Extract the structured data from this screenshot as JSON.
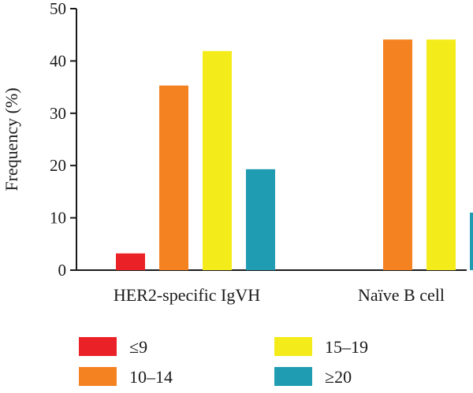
{
  "chart_data": {
    "type": "bar",
    "title": "",
    "xlabel": "",
    "ylabel": "Frequency (%)",
    "ylim": [
      0,
      50
    ],
    "yticks": [
      0,
      10,
      20,
      30,
      40,
      50
    ],
    "grid": false,
    "legend_position": "bottom",
    "categories": [
      "HER2-specific IgVH",
      "Naïve B cell"
    ],
    "series": [
      {
        "name": "≤9",
        "color": "#ea2227",
        "values": [
          3.2,
          null
        ]
      },
      {
        "name": "10–14",
        "color": "#f58220",
        "values": [
          35.3,
          44.1
        ]
      },
      {
        "name": "15–19",
        "color": "#f4ec1a",
        "values": [
          41.9,
          44.1
        ]
      },
      {
        "name": "≥20",
        "color": "#1f9bb2",
        "values": [
          19.3,
          11.0
        ]
      }
    ]
  }
}
